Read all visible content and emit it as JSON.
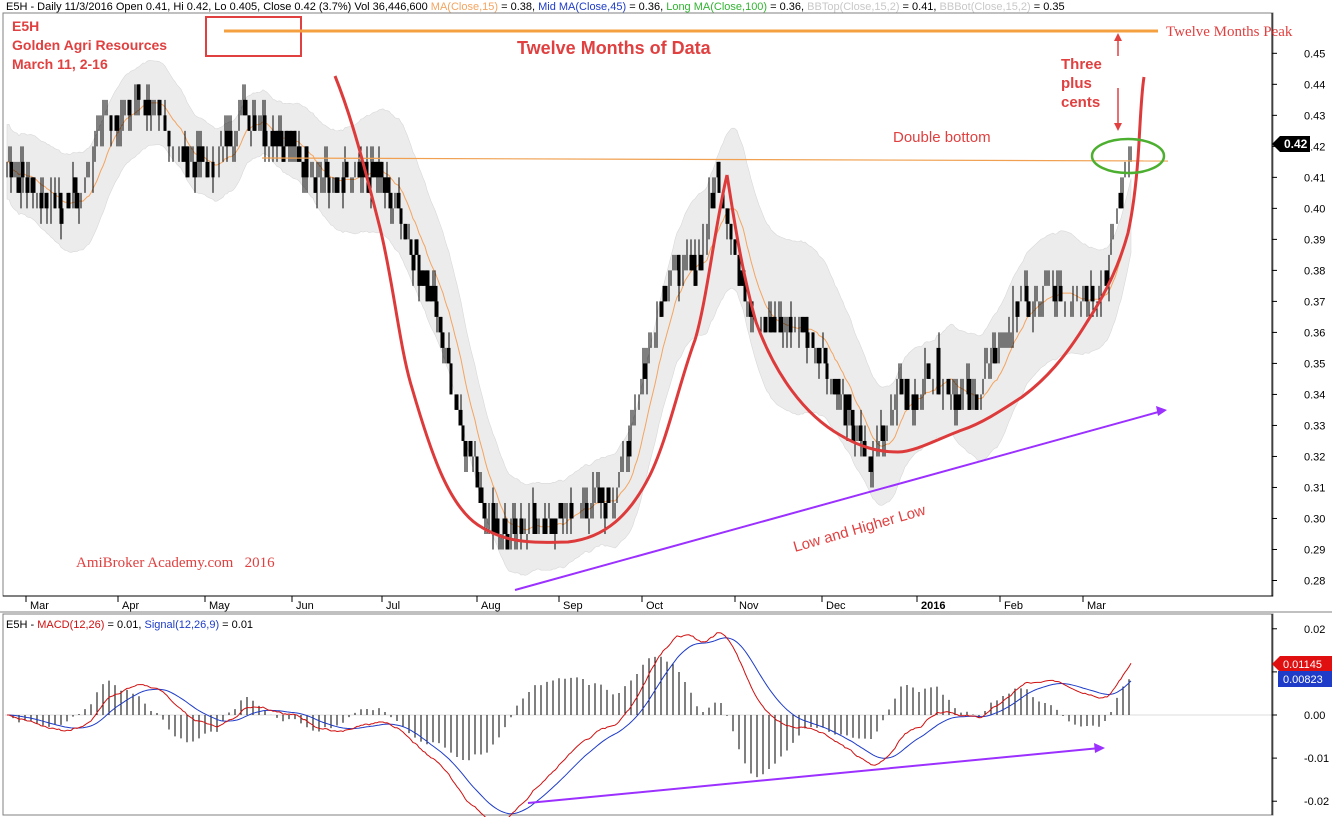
{
  "header": {
    "parts": [
      {
        "text": "E5H - Daily 11/3/2016 Open 0.41, Hi 0.42, Lo 0.405, Close 0.42 (3.7%) Vol 36,446,600 ",
        "color": "#000000"
      },
      {
        "text": "MA(Close,15)",
        "color": "#f4a460"
      },
      {
        "text": " = 0.38, ",
        "color": "#000000"
      },
      {
        "text": "Mid MA(Close,45)",
        "color": "#1e3cc8"
      },
      {
        "text": " = 0.36, ",
        "color": "#000000"
      },
      {
        "text": "Long MA(Close,100)",
        "color": "#32b432"
      },
      {
        "text": " = 0.36, ",
        "color": "#000000"
      },
      {
        "text": "BBTop(Close,15,2)",
        "color": "#c8c8c8"
      },
      {
        "text": " = 0.41, ",
        "color": "#000000"
      },
      {
        "text": "BBBot(Close,15,2)",
        "color": "#c8c8c8"
      },
      {
        "text": " = 0.35",
        "color": "#000000"
      }
    ]
  },
  "macd_header": {
    "parts": [
      {
        "text": "E5H - ",
        "color": "#000000"
      },
      {
        "text": "MACD(12,26)",
        "color": "#d01010"
      },
      {
        "text": " = 0.01, ",
        "color": "#000000"
      },
      {
        "text": "Signal(12,26,9)",
        "color": "#1e3cc8"
      },
      {
        "text": " = 0.01",
        "color": "#000000"
      }
    ]
  },
  "annotations": {
    "ticker": "E5H",
    "company": "Golden Agri Resources",
    "date_note": "March 11, 2-16",
    "title": "Twelve Months of Data",
    "peak_label": "Twelve Months Peak",
    "three_plus_1": "Three",
    "three_plus_2": "plus",
    "three_plus_3": "cents",
    "double_bottom": "Double bottom",
    "low_higher_low": "Low and Higher Low",
    "watermark": "AmiBroker Academy.com   2016"
  },
  "colors": {
    "candle": "#000000",
    "band_fill": "#ececec",
    "ma15": "#f4a460",
    "annotation_red": "#e04040",
    "curve_red": "#dd3b3b",
    "peak_line": "#f5a040",
    "support_line": "#f0a050",
    "trend_purple": "#9b30ff",
    "ellipse_green": "#4caf30",
    "macd_red": "#d01010",
    "signal_blue": "#1e3cc8"
  },
  "chart_data": [
    {
      "type": "candlestick",
      "title": "E5H - Daily 11/3/2016",
      "x_labels": [
        "Mar",
        "Apr",
        "May",
        "Jun",
        "Jul",
        "Aug",
        "Sep",
        "Oct",
        "Nov",
        "Dec",
        "2016",
        "Feb",
        "Mar"
      ],
      "y_ticks": [
        0.28,
        0.29,
        0.3,
        0.31,
        0.32,
        0.33,
        0.34,
        0.35,
        0.36,
        0.37,
        0.38,
        0.39,
        0.4,
        0.41,
        0.42,
        0.43,
        0.44,
        0.45
      ],
      "ylim": [
        0.275,
        0.463
      ],
      "last_close": 0.42,
      "last_close_label": "0.42",
      "price_anchors": [
        [
          0,
          0.415
        ],
        [
          8,
          0.41
        ],
        [
          18,
          0.404
        ],
        [
          28,
          0.4
        ],
        [
          38,
          0.406
        ],
        [
          47,
          0.428
        ],
        [
          57,
          0.431
        ],
        [
          67,
          0.436
        ],
        [
          77,
          0.426
        ],
        [
          87,
          0.418
        ],
        [
          95,
          0.415
        ],
        [
          102,
          0.412
        ],
        [
          109,
          0.42
        ],
        [
          117,
          0.433
        ],
        [
          127,
          0.425
        ],
        [
          137,
          0.423
        ],
        [
          147,
          0.416
        ],
        [
          155,
          0.41
        ],
        [
          165,
          0.407
        ],
        [
          175,
          0.41
        ],
        [
          185,
          0.412
        ],
        [
          193,
          0.402
        ],
        [
          201,
          0.39
        ],
        [
          209,
          0.377
        ],
        [
          216,
          0.364
        ],
        [
          222,
          0.346
        ],
        [
          229,
          0.326
        ],
        [
          236,
          0.311
        ],
        [
          243,
          0.3
        ],
        [
          251,
          0.294
        ],
        [
          261,
          0.299
        ],
        [
          269,
          0.295
        ],
        [
          279,
          0.302
        ],
        [
          289,
          0.306
        ],
        [
          299,
          0.304
        ],
        [
          309,
          0.319
        ],
        [
          317,
          0.344
        ],
        [
          325,
          0.368
        ],
        [
          333,
          0.381
        ],
        [
          340,
          0.38
        ],
        [
          346,
          0.383
        ],
        [
          351,
          0.4
        ],
        [
          355,
          0.411
        ],
        [
          359,
          0.401
        ],
        [
          365,
          0.383
        ],
        [
          371,
          0.371
        ],
        [
          379,
          0.362
        ],
        [
          389,
          0.361
        ],
        [
          397,
          0.364
        ],
        [
          405,
          0.356
        ],
        [
          413,
          0.344
        ],
        [
          421,
          0.334
        ],
        [
          428,
          0.32
        ],
        [
          433,
          0.318
        ],
        [
          438,
          0.329
        ],
        [
          446,
          0.342
        ],
        [
          454,
          0.337
        ],
        [
          462,
          0.35
        ],
        [
          470,
          0.344
        ],
        [
          478,
          0.338
        ],
        [
          485,
          0.339
        ],
        [
          492,
          0.35
        ],
        [
          499,
          0.36
        ],
        [
          506,
          0.37
        ],
        [
          513,
          0.366
        ],
        [
          521,
          0.374
        ],
        [
          529,
          0.371
        ],
        [
          537,
          0.374
        ],
        [
          545,
          0.372
        ],
        [
          551,
          0.382
        ],
        [
          555,
          0.4
        ],
        [
          559,
          0.41
        ],
        [
          562,
          0.42
        ]
      ],
      "bollinger_half_width": [
        0.012,
        0.016,
        0.014,
        0.012,
        0.01,
        0.016,
        0.022,
        0.018,
        0.014,
        0.014,
        0.02,
        0.026,
        0.028,
        0.02,
        0.016,
        0.022,
        0.02,
        0.012
      ],
      "moving_average_period": 15,
      "bar_count": 563
    },
    {
      "type": "line",
      "title": "MACD(12,26) / Signal(12,26,9)",
      "y_ticks": [
        -0.02,
        -0.01,
        0.0,
        0.01,
        0.02
      ],
      "ylim": [
        -0.0225,
        0.0225
      ],
      "macd_value_label": "0.01145",
      "signal_value_label": "0.00823",
      "series": [
        {
          "name": "MACD(12,26)"
        },
        {
          "name": "Signal(12,26,9)"
        },
        {
          "name": "Histogram"
        }
      ]
    }
  ]
}
